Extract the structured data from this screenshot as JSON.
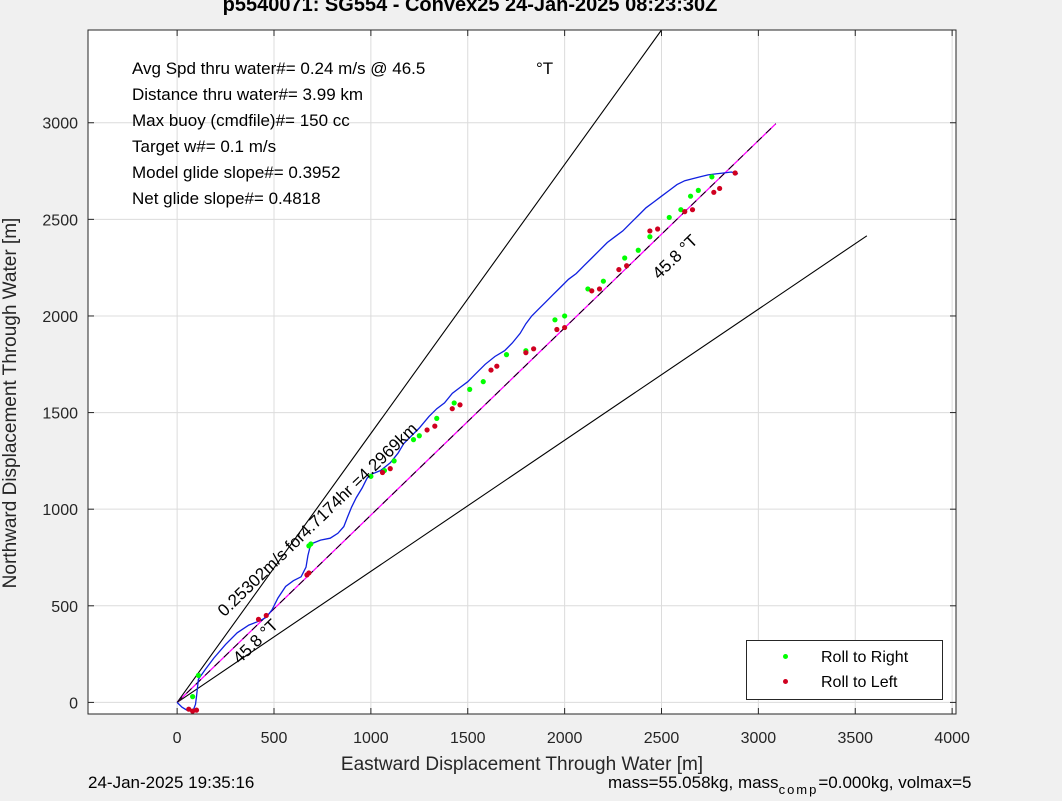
{
  "chart_data": {
    "type": "line",
    "title": "p5540071: SG554 - Convex25 24-Jan-2025 08:23:30Z",
    "xlabel": "Eastward Displacement Through Water [m]",
    "ylabel": "Northward Displacement Through Water [m]",
    "xlim": [
      -460,
      4020
    ],
    "ylim": [
      -60,
      3480
    ],
    "xticks": [
      0,
      500,
      1000,
      1500,
      2000,
      2500,
      3000,
      3500,
      4000
    ],
    "yticks": [
      0,
      500,
      1000,
      1500,
      2000,
      2500,
      3000
    ],
    "grid": true,
    "legend_position": "bottom-right",
    "annotations": [
      "Avg Spd thru water#=  0.24 m/s @  46.5",
      "°T",
      "Distance thru water#=  3.99 km",
      "Max buoy (cmdfile)#= 150 cc",
      "Target w#= 0.1 m/s",
      "Model glide slope#= 0.3952",
      "Net glide slope#= 0.4818"
    ],
    "line_labels": {
      "heading_upper": "45.8 °T",
      "heading_lower": "45.8 °T",
      "speed": "0.25302m/s for4.7174hr =4.2969km"
    },
    "reference_lines": [
      {
        "x": [
          0,
          2500
        ],
        "y": [
          0,
          3480
        ]
      },
      {
        "x": [
          0,
          3560
        ],
        "y": [
          0,
          2415
        ]
      },
      {
        "x": [
          0,
          3090
        ],
        "y": [
          0,
          2995
        ]
      }
    ],
    "track": {
      "x": [
        0,
        25,
        50,
        70,
        85,
        95,
        100,
        110,
        145,
        190,
        250,
        310,
        370,
        420,
        460,
        490,
        520,
        560,
        600,
        640,
        665,
        675,
        690,
        740,
        790,
        830,
        860,
        880,
        900,
        925,
        955,
        980,
        1000,
        1050,
        1100,
        1140,
        1170,
        1200,
        1220,
        1250,
        1300,
        1340,
        1380,
        1420,
        1460,
        1500,
        1540,
        1590,
        1640,
        1690,
        1730,
        1770,
        1800,
        1830,
        1860,
        1900,
        1940,
        1980,
        2020,
        2060,
        2100,
        2140,
        2180,
        2220,
        2260,
        2300,
        2340,
        2380,
        2420,
        2460,
        2500,
        2540,
        2580,
        2620,
        2660,
        2700,
        2740,
        2780,
        2820,
        2860,
        2895
      ],
      "y": [
        0,
        -25,
        -40,
        -45,
        -35,
        -10,
        30,
        120,
        170,
        230,
        300,
        360,
        400,
        420,
        440,
        480,
        540,
        600,
        630,
        650,
        700,
        760,
        820,
        840,
        850,
        875,
        910,
        960,
        1010,
        1060,
        1110,
        1160,
        1180,
        1200,
        1240,
        1290,
        1340,
        1370,
        1390,
        1420,
        1480,
        1520,
        1550,
        1600,
        1630,
        1660,
        1700,
        1750,
        1790,
        1820,
        1860,
        1910,
        1960,
        2000,
        2030,
        2070,
        2110,
        2150,
        2190,
        2220,
        2260,
        2300,
        2340,
        2380,
        2410,
        2440,
        2480,
        2520,
        2560,
        2590,
        2620,
        2650,
        2680,
        2700,
        2710,
        2720,
        2730,
        2735,
        2740,
        2745,
        2735
      ]
    },
    "series": [
      {
        "name": "Roll to Right",
        "color": "#00ff00",
        "x": [
          80,
          110,
          680,
          690,
          1000,
          1070,
          1120,
          1220,
          1250,
          1340,
          1430,
          1510,
          1580,
          1700,
          1800,
          1950,
          2000,
          2120,
          2200,
          2310,
          2380,
          2440,
          2540,
          2600,
          2650,
          2690,
          2760
        ],
        "y": [
          30,
          140,
          810,
          820,
          1170,
          1200,
          1250,
          1360,
          1380,
          1470,
          1550,
          1620,
          1660,
          1800,
          1820,
          1980,
          2000,
          2140,
          2180,
          2300,
          2340,
          2410,
          2510,
          2550,
          2620,
          2650,
          2720
        ]
      },
      {
        "name": "Roll to Left",
        "color": "#d00020",
        "x": [
          60,
          80,
          100,
          420,
          460,
          670,
          680,
          1060,
          1100,
          1290,
          1330,
          1420,
          1460,
          1620,
          1650,
          1800,
          1840,
          1960,
          2000,
          2140,
          2180,
          2280,
          2320,
          2440,
          2480,
          2620,
          2660,
          2770,
          2800,
          2880
        ],
        "y": [
          -35,
          -45,
          -40,
          430,
          450,
          660,
          670,
          1190,
          1210,
          1410,
          1430,
          1520,
          1540,
          1720,
          1740,
          1810,
          1830,
          1930,
          1940,
          2130,
          2140,
          2240,
          2260,
          2440,
          2450,
          2540,
          2550,
          2640,
          2660,
          2740
        ]
      }
    ]
  },
  "footer": {
    "timestamp": "24-Jan-2025 19:35:16",
    "mass_text": "mass=55.058kg, mass",
    "comp_sub": "comp",
    "mass_tail": "=0.000kg, volmax=5"
  }
}
